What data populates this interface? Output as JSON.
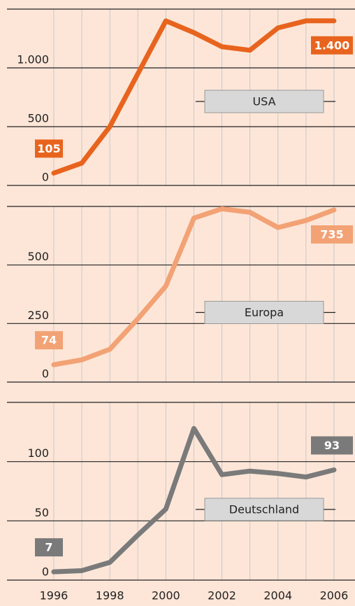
{
  "chart_data": [
    {
      "type": "line",
      "x": [
        1996,
        1997,
        1998,
        1999,
        2000,
        2001,
        2002,
        2003,
        2004,
        2005,
        2006
      ],
      "xlim": [
        1994.33,
        2006.75
      ],
      "ylim": [
        0,
        1500
      ],
      "yticks": [
        0,
        500,
        {
          "value": 1000,
          "label": "1.000"
        }
      ],
      "series": [
        {
          "name": "USA",
          "color": "#e8641e",
          "values": [
            105,
            190,
            500,
            950,
            1400,
            1300,
            1180,
            1150,
            1340,
            1400,
            1400
          ],
          "value_labels": [
            "105",
            null,
            null,
            null,
            null,
            null,
            null,
            null,
            null,
            null,
            "1.400"
          ]
        }
      ]
    },
    {
      "type": "line",
      "x": [
        1996,
        1997,
        1998,
        1999,
        2000,
        2001,
        2002,
        2003,
        2004,
        2005,
        2006
      ],
      "xlim": [
        1994.33,
        2006.75
      ],
      "ylim": [
        0,
        750
      ],
      "yticks": [
        0,
        250,
        500
      ],
      "series": [
        {
          "name": "Europa",
          "color": "#f2a274",
          "values": [
            74,
            95,
            140,
            270,
            410,
            700,
            740,
            725,
            660,
            690,
            735
          ],
          "value_labels": [
            "74",
            null,
            null,
            null,
            null,
            null,
            null,
            null,
            null,
            null,
            "735"
          ]
        }
      ]
    },
    {
      "type": "line",
      "x": [
        1996,
        1997,
        1998,
        1999,
        2000,
        2001,
        2002,
        2003,
        2004,
        2005,
        2006
      ],
      "xlim": [
        1994.33,
        2006.75
      ],
      "ylim": [
        0,
        150
      ],
      "yticks": [
        0,
        50,
        100
      ],
      "xticks": [
        1996,
        1998,
        2000,
        2002,
        2004,
        2006
      ],
      "series": [
        {
          "name": "Deutschland",
          "color": "#7a7a7a",
          "values": [
            7,
            8,
            15,
            38,
            60,
            128,
            89,
            92,
            90,
            87,
            93
          ],
          "value_labels": [
            "7",
            null,
            null,
            null,
            null,
            null,
            null,
            null,
            null,
            null,
            "93"
          ]
        }
      ]
    }
  ]
}
